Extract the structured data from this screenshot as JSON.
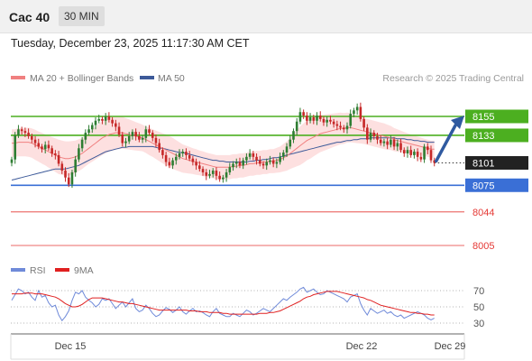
{
  "header": {
    "symbol": "Cac 40",
    "timeframe": "30 MIN"
  },
  "timestamp": "Tuesday, December 23, 2025 11:17:30 AM CET",
  "credit": "Research © 2025 Trading Central",
  "colors": {
    "up": "#2e7d32",
    "down": "#c62828",
    "resistance": "#4caf20",
    "support": "#3a6fd6",
    "target": "#e53935",
    "last": "#222222",
    "bollinger": "#fcd6d6",
    "ma20": "#f08080",
    "ma50": "#3d5a99",
    "arrow": "#2f5aa0",
    "rsi": "#6f8ad9",
    "rsi_ma": "#e02020"
  },
  "chart_data": [
    {
      "type": "candlestick",
      "legend": [
        {
          "label": "MA 20 + Bollinger Bands",
          "color": "#f08080"
        },
        {
          "label": "MA 50",
          "color": "#3d5a99"
        }
      ],
      "x_ticks": [
        "Dec 15",
        "Dec 22",
        "Dec 29"
      ],
      "levels": [
        {
          "label": "8155",
          "value": 8155,
          "kind": "resistance"
        },
        {
          "label": "8133",
          "value": 8133,
          "kind": "resistance"
        },
        {
          "label": "8101",
          "value": 8101,
          "kind": "last"
        },
        {
          "label": "8075",
          "value": 8075,
          "kind": "support"
        },
        {
          "label": "8044",
          "value": 8044,
          "kind": "target"
        },
        {
          "label": "8005",
          "value": 8005,
          "kind": "target"
        }
      ],
      "close": [
        8105,
        8133,
        8140,
        8138,
        8136,
        8132,
        8128,
        8124,
        8120,
        8117,
        8122,
        8118,
        8112,
        8110,
        8100,
        8092,
        8084,
        8076,
        8090,
        8105,
        8118,
        8128,
        8136,
        8140,
        8145,
        8150,
        8152,
        8150,
        8155,
        8151,
        8147,
        8143,
        8134,
        8124,
        8126,
        8132,
        8137,
        8132,
        8128,
        8130,
        8140,
        8136,
        8130,
        8124,
        8116,
        8110,
        8102,
        8098,
        8104,
        8108,
        8112,
        8114,
        8110,
        8106,
        8102,
        8098,
        8094,
        8090,
        8086,
        8088,
        8092,
        8086,
        8082,
        8084,
        8090,
        8096,
        8100,
        8102,
        8098,
        8104,
        8108,
        8112,
        8108,
        8104,
        8100,
        8098,
        8102,
        8104,
        8100,
        8102,
        8108,
        8113,
        8120,
        8128,
        8138,
        8149,
        8160,
        8156,
        8150,
        8154,
        8150,
        8156,
        8152,
        8148,
        8151,
        8149,
        8146,
        8144,
        8142,
        8140,
        8144,
        8158,
        8162,
        8166,
        8152,
        8142,
        8128,
        8136,
        8132,
        8128,
        8124,
        8126,
        8122,
        8128,
        8120,
        8124,
        8116,
        8112,
        8116,
        8110,
        8114,
        8108,
        8105,
        8120,
        8116,
        8104,
        8101
      ],
      "ma20": [
        8124,
        8124,
        8125,
        8125,
        8125,
        8125,
        8124,
        8122,
        8120,
        8118,
        8116,
        8114,
        8112,
        8110,
        8108,
        8107,
        8106,
        8106,
        8107,
        8108,
        8110,
        8112,
        8115,
        8118,
        8121,
        8124,
        8127,
        8130,
        8132,
        8134,
        8135,
        8136,
        8136,
        8136,
        8135,
        8134,
        8133,
        8132,
        8131,
        8130,
        8128,
        8126,
        8124,
        8122,
        8120,
        8118,
        8116,
        8114,
        8112,
        8110,
        8108,
        8106,
        8105,
        8104,
        8103,
        8102,
        8101,
        8100,
        8099,
        8098,
        8097,
        8096,
        8096,
        8096,
        8096,
        8096,
        8097,
        8097,
        8098,
        8098,
        8099,
        8100,
        8100,
        8101,
        8101,
        8102,
        8102,
        8103,
        8103,
        8104,
        8105,
        8107,
        8109,
        8112,
        8115,
        8118,
        8121,
        8124,
        8127,
        8129,
        8131,
        8133,
        8135,
        8136,
        8137,
        8138,
        8139,
        8140,
        8141,
        8141,
        8142,
        8142,
        8141,
        8140,
        8139,
        8138,
        8137,
        8136,
        8135,
        8134,
        8133,
        8132,
        8131,
        8130,
        8128,
        8127,
        8126,
        8125,
        8124,
        8123,
        8122,
        8121,
        8120,
        8119,
        8118,
        8117,
        8117
      ],
      "ma50": [
        8081,
        8082,
        8083,
        8084,
        8085,
        8086,
        8087,
        8088,
        8089,
        8090,
        8091,
        8092,
        8093,
        8094,
        8094,
        8094,
        8094,
        8095,
        8096,
        8097,
        8098,
        8100,
        8102,
        8104,
        8106,
        8108,
        8110,
        8112,
        8114,
        8115,
        8116,
        8117,
        8118,
        8119,
        8119,
        8120,
        8120,
        8120,
        8120,
        8120,
        8120,
        8120,
        8120,
        8119,
        8118,
        8118,
        8117,
        8116,
        8115,
        8114,
        8113,
        8113,
        8112,
        8111,
        8110,
        8109,
        8108,
        8107,
        8106,
        8105,
        8104,
        8104,
        8103,
        8103,
        8102,
        8102,
        8102,
        8102,
        8102,
        8102,
        8102,
        8103,
        8103,
        8104,
        8104,
        8105,
        8105,
        8106,
        8107,
        8107,
        8108,
        8109,
        8110,
        8111,
        8112,
        8113,
        8114,
        8115,
        8116,
        8117,
        8118,
        8119,
        8120,
        8121,
        8122,
        8123,
        8124,
        8125,
        8125,
        8126,
        8127,
        8127,
        8128,
        8128,
        8129,
        8129,
        8129,
        8130,
        8130,
        8130,
        8130,
        8130,
        8130,
        8130,
        8130,
        8129,
        8129,
        8129,
        8128,
        8128,
        8127,
        8127,
        8126,
        8126,
        8125,
        8125,
        8125
      ],
      "bb_width": [
        32,
        32,
        33,
        33,
        33,
        34,
        34,
        35,
        35,
        36,
        36,
        37,
        38,
        39,
        40,
        40,
        40,
        40,
        39,
        38,
        37,
        36,
        36,
        36,
        37,
        38,
        39,
        40,
        40,
        40,
        40,
        39,
        38,
        37,
        36,
        35,
        34,
        33,
        32,
        31,
        31,
        32,
        32,
        33,
        34,
        35,
        36,
        36,
        36,
        35,
        34,
        33,
        32,
        31,
        30,
        30,
        29,
        29,
        28,
        28,
        28,
        28,
        28,
        28,
        28,
        28,
        28,
        28,
        28,
        28,
        28,
        28,
        28,
        28,
        28,
        28,
        28,
        28,
        28,
        29,
        30,
        32,
        34,
        36,
        39,
        42,
        45,
        46,
        46,
        46,
        45,
        44,
        43,
        42,
        41,
        40,
        39,
        38,
        37,
        36,
        35,
        34,
        33,
        32,
        31,
        30,
        30,
        30,
        30,
        30,
        30,
        30,
        29,
        28,
        27,
        26,
        25,
        24,
        23,
        22,
        22,
        21,
        21,
        20,
        20,
        20,
        20
      ]
    },
    {
      "type": "line",
      "name": "RSI",
      "legend": [
        {
          "label": "RSI",
          "color": "#6f8ad9"
        },
        {
          "label": "9MA",
          "color": "#e02020"
        }
      ],
      "y_ticks": [
        70,
        50,
        30
      ],
      "rsi": [
        58,
        65,
        72,
        70,
        66,
        68,
        62,
        58,
        70,
        62,
        64,
        55,
        50,
        52,
        40,
        33,
        38,
        45,
        58,
        68,
        66,
        70,
        62,
        58,
        55,
        50,
        53,
        60,
        58,
        60,
        54,
        48,
        52,
        56,
        50,
        55,
        60,
        48,
        44,
        46,
        52,
        48,
        42,
        38,
        40,
        45,
        49,
        47,
        43,
        46,
        50,
        44,
        41,
        45,
        48,
        44,
        45,
        43,
        40,
        38,
        44,
        48,
        42,
        40,
        38,
        38,
        42,
        40,
        38,
        42,
        46,
        44,
        40,
        42,
        45,
        48,
        46,
        44,
        48,
        52,
        56,
        60,
        58,
        62,
        65,
        68,
        72,
        74,
        68,
        70,
        72,
        68,
        65,
        66,
        70,
        68,
        66,
        64,
        62,
        60,
        56,
        62,
        64,
        66,
        54,
        46,
        40,
        48,
        45,
        42,
        44,
        46,
        42,
        44,
        40,
        38,
        40,
        36,
        38,
        40,
        42,
        44,
        42,
        40,
        36,
        34,
        36
      ],
      "ma9": [
        66,
        66,
        66,
        66,
        67,
        67,
        67,
        66,
        66,
        66,
        65,
        64,
        63,
        62,
        60,
        57,
        54,
        52,
        50,
        50,
        51,
        53,
        56,
        59,
        61,
        61,
        61,
        61,
        60,
        59,
        58,
        57,
        56,
        56,
        55,
        54,
        54,
        53,
        52,
        51,
        50,
        49,
        48,
        47,
        46,
        46,
        46,
        46,
        46,
        46,
        46,
        46,
        46,
        45,
        45,
        45,
        44,
        44,
        44,
        43,
        43,
        43,
        43,
        42,
        42,
        41,
        41,
        41,
        41,
        41,
        41,
        41,
        41,
        41,
        42,
        42,
        42,
        43,
        43,
        44,
        45,
        47,
        49,
        51,
        53,
        55,
        57,
        60,
        62,
        63,
        65,
        66,
        67,
        68,
        69,
        69,
        69,
        69,
        68,
        67,
        66,
        65,
        64,
        63,
        62,
        61,
        59,
        58,
        56,
        54,
        52,
        51,
        50,
        49,
        48,
        47,
        46,
        45,
        44,
        43,
        43,
        42,
        42,
        41,
        41,
        40,
        40
      ]
    }
  ]
}
